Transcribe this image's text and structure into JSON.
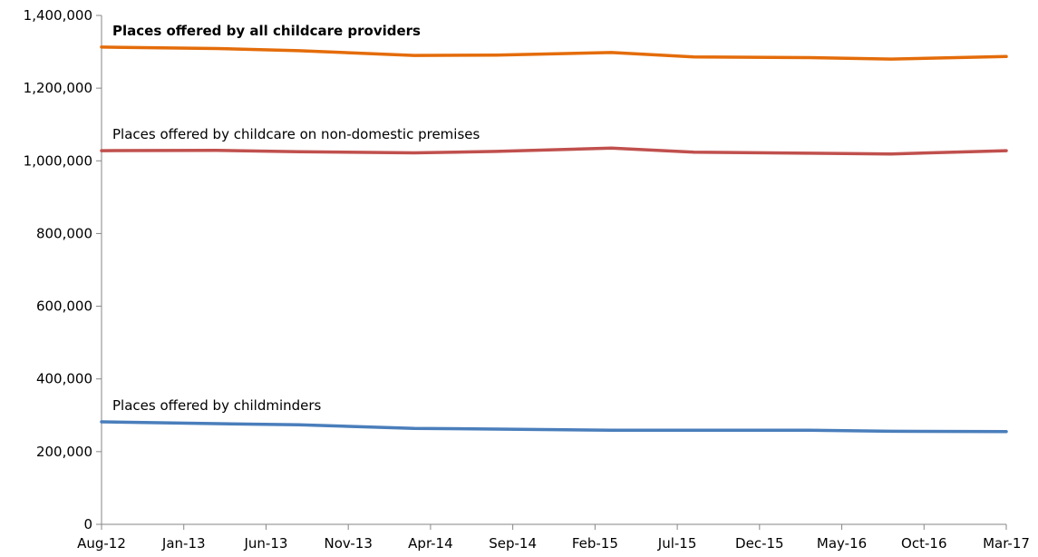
{
  "chart_data": {
    "type": "line",
    "x_ticks": [
      "Aug-12",
      "Jan-13",
      "Jun-13",
      "Nov-13",
      "Apr-14",
      "Sep-14",
      "Feb-15",
      "Jul-15",
      "Dec-15",
      "May-16",
      "Oct-16",
      "Mar-17"
    ],
    "x_range": [
      "2012-08",
      "2017-03"
    ],
    "ylim": [
      0,
      1400000
    ],
    "y_ticks": [
      0,
      200000,
      400000,
      600000,
      800000,
      1000000,
      1200000,
      1400000
    ],
    "y_tick_labels": [
      "0",
      "200,000",
      "400,000",
      "600,000",
      "800,000",
      "1,000,000",
      "1,200,000",
      "1,400,000"
    ],
    "grid": false,
    "legend": "none",
    "series": [
      {
        "name": "Places offered by all childcare providers",
        "color": "#E46C0A",
        "label_bold": true,
        "points": [
          {
            "x": "2012-08",
            "y": 1313000
          },
          {
            "x": "2013-03",
            "y": 1309000
          },
          {
            "x": "2013-08",
            "y": 1303000
          },
          {
            "x": "2014-03",
            "y": 1290000
          },
          {
            "x": "2014-08",
            "y": 1291000
          },
          {
            "x": "2015-03",
            "y": 1298000
          },
          {
            "x": "2015-08",
            "y": 1286000
          },
          {
            "x": "2016-03",
            "y": 1284000
          },
          {
            "x": "2016-08",
            "y": 1280000
          },
          {
            "x": "2017-03",
            "y": 1287000
          }
        ]
      },
      {
        "name": "Places offered by childcare on non-domestic premises",
        "color": "#C0504D",
        "label_bold": false,
        "points": [
          {
            "x": "2012-08",
            "y": 1028000
          },
          {
            "x": "2013-03",
            "y": 1029000
          },
          {
            "x": "2013-08",
            "y": 1025000
          },
          {
            "x": "2014-03",
            "y": 1022000
          },
          {
            "x": "2014-08",
            "y": 1026000
          },
          {
            "x": "2015-03",
            "y": 1035000
          },
          {
            "x": "2015-08",
            "y": 1024000
          },
          {
            "x": "2016-03",
            "y": 1021000
          },
          {
            "x": "2016-08",
            "y": 1019000
          },
          {
            "x": "2017-03",
            "y": 1028000
          }
        ]
      },
      {
        "name": "Places offered by childminders",
        "color": "#4A7EBB",
        "label_bold": false,
        "points": [
          {
            "x": "2012-08",
            "y": 282000
          },
          {
            "x": "2013-03",
            "y": 277000
          },
          {
            "x": "2013-08",
            "y": 274000
          },
          {
            "x": "2014-03",
            "y": 264000
          },
          {
            "x": "2014-08",
            "y": 262000
          },
          {
            "x": "2015-03",
            "y": 259000
          },
          {
            "x": "2015-08",
            "y": 259000
          },
          {
            "x": "2016-03",
            "y": 259000
          },
          {
            "x": "2016-08",
            "y": 256000
          },
          {
            "x": "2017-03",
            "y": 255000
          }
        ]
      }
    ]
  }
}
